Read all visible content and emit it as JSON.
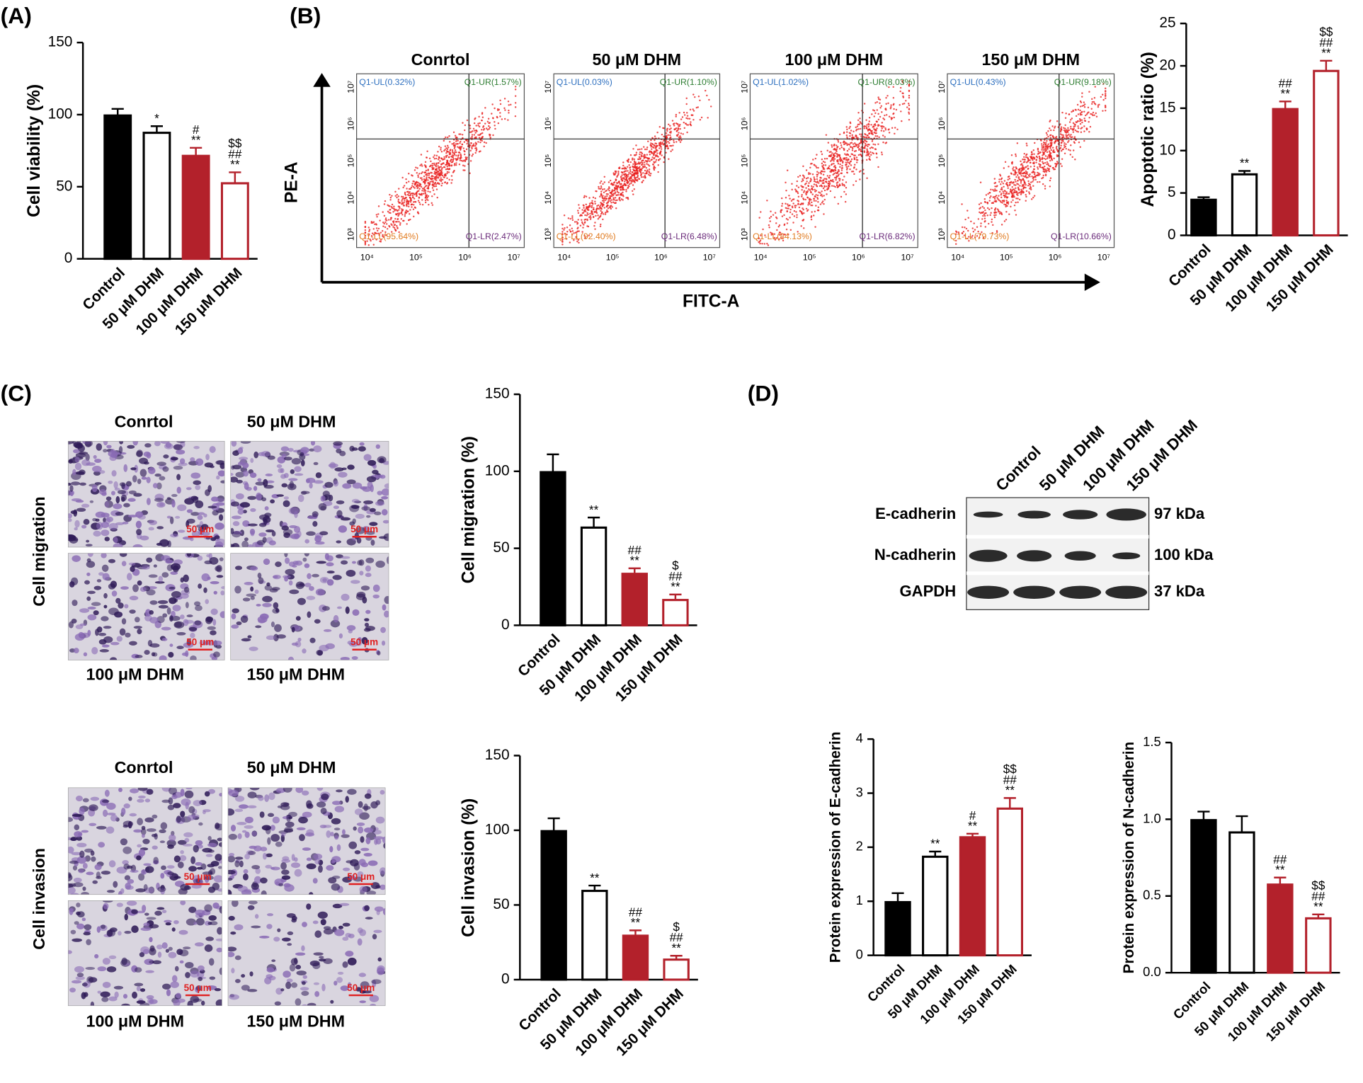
{
  "panel_labels": [
    "(A)",
    "(B)",
    "(C)",
    "(D)"
  ],
  "chart_data": [
    {
      "type": "bar",
      "ylabel": "Cell viability (%)",
      "categories": [
        "Control",
        "50 μM DHM",
        "100 μM DHM",
        "150 μM DHM"
      ],
      "values": [
        100,
        88,
        72,
        53
      ],
      "errors": [
        4,
        4,
        5,
        7
      ],
      "annotations": [
        [],
        [
          "*"
        ],
        [
          "#",
          "**"
        ],
        [
          "$$",
          "##",
          "**"
        ]
      ],
      "colors": [
        "#000000",
        "#ffffff",
        "#b3212b",
        "#ffffff"
      ],
      "edgecolors": [
        "#000000",
        "#000000",
        "#b3212b",
        "#b3212b"
      ],
      "ylim": [
        0,
        150
      ],
      "yticks": [
        0,
        50,
        100,
        150
      ]
    },
    {
      "type": "bar",
      "ylabel": "Apoptotic ratio (%)",
      "categories": [
        "Control",
        "50 μM DHM",
        "100 μM DHM",
        "150 μM DHM"
      ],
      "values": [
        4.3,
        7.3,
        15.0,
        19.5
      ],
      "errors": [
        0.2,
        0.3,
        0.8,
        1.1
      ],
      "annotations": [
        [],
        [
          "**"
        ],
        [
          "##",
          "**"
        ],
        [
          "$$",
          "##",
          "**"
        ]
      ],
      "colors": [
        "#000000",
        "#ffffff",
        "#b3212b",
        "#ffffff"
      ],
      "edgecolors": [
        "#000000",
        "#000000",
        "#b3212b",
        "#b3212b"
      ],
      "ylim": [
        0,
        25
      ],
      "yticks": [
        0,
        5,
        10,
        15,
        20,
        25
      ]
    },
    {
      "type": "bar",
      "ylabel": "Cell migration (%)",
      "categories": [
        "Control",
        "50 μM DHM",
        "100 μM DHM",
        "150 μM DHM"
      ],
      "values": [
        100,
        64,
        34,
        17
      ],
      "errors": [
        11,
        6,
        3,
        3
      ],
      "annotations": [
        [],
        [
          "**"
        ],
        [
          "##",
          "**"
        ],
        [
          "$",
          "##",
          "**"
        ]
      ],
      "colors": [
        "#000000",
        "#ffffff",
        "#b3212b",
        "#ffffff"
      ],
      "edgecolors": [
        "#000000",
        "#000000",
        "#b3212b",
        "#b3212b"
      ],
      "ylim": [
        0,
        150
      ],
      "yticks": [
        0,
        50,
        100,
        150
      ]
    },
    {
      "type": "bar",
      "ylabel": "Cell invasion (%)",
      "categories": [
        "Control",
        "50 μM DHM",
        "100 μM DHM",
        "150 μM DHM"
      ],
      "values": [
        100,
        60,
        30,
        14
      ],
      "errors": [
        8,
        3,
        3,
        2
      ],
      "annotations": [
        [],
        [
          "**"
        ],
        [
          "##",
          "**"
        ],
        [
          "$",
          "##",
          "**"
        ]
      ],
      "colors": [
        "#000000",
        "#ffffff",
        "#b3212b",
        "#ffffff"
      ],
      "edgecolors": [
        "#000000",
        "#000000",
        "#b3212b",
        "#b3212b"
      ],
      "ylim": [
        0,
        150
      ],
      "yticks": [
        0,
        50,
        100,
        150
      ]
    },
    {
      "type": "bar",
      "ylabel": "Protein expression of E-cadherin",
      "categories": [
        "Control",
        "50 μM DHM",
        "100 μM DHM",
        "150 μM DHM"
      ],
      "values": [
        1.0,
        1.84,
        2.2,
        2.73
      ],
      "errors": [
        0.15,
        0.08,
        0.05,
        0.18
      ],
      "annotations": [
        [],
        [
          "**"
        ],
        [
          "#",
          "**"
        ],
        [
          "$$",
          "##",
          "**"
        ]
      ],
      "colors": [
        "#000000",
        "#ffffff",
        "#b3212b",
        "#ffffff"
      ],
      "edgecolors": [
        "#000000",
        "#000000",
        "#b3212b",
        "#b3212b"
      ],
      "ylim": [
        0,
        4
      ],
      "yticks": [
        0,
        1,
        2,
        3,
        4
      ]
    },
    {
      "type": "bar",
      "ylabel": "Protein expression of N-cadherin",
      "categories": [
        "Control",
        "50 μM DHM",
        "100 μM DHM",
        "150 μM DHM"
      ],
      "values": [
        1.0,
        0.92,
        0.58,
        0.36
      ],
      "errors": [
        0.05,
        0.1,
        0.04,
        0.02
      ],
      "annotations": [
        [],
        [],
        [
          "##",
          "**"
        ],
        [
          "$$",
          "##",
          "**"
        ]
      ],
      "colors": [
        "#000000",
        "#ffffff",
        "#b3212b",
        "#ffffff"
      ],
      "edgecolors": [
        "#000000",
        "#000000",
        "#b3212b",
        "#b3212b"
      ],
      "ylim": [
        0,
        1.5
      ],
      "yticks": [
        {
          "value": 0,
          "label": "0.0"
        },
        0.5,
        {
          "value": 1,
          "label": "1.0"
        },
        1.5
      ]
    }
  ],
  "flow": {
    "xlabel": "FITC-A",
    "ylabel": "PE-A",
    "yticks": [
      "10³",
      "10⁴",
      "10⁵",
      "10⁶",
      "10⁷"
    ],
    "xticks": [
      "10⁴",
      "10⁵",
      "10⁶",
      "10⁷"
    ],
    "quadrant_colors": [
      "#2d6fbf",
      "#2e7d32",
      "#e07b20",
      "#6a2a7a"
    ],
    "panels": [
      {
        "title": "Conrtol",
        "quadrants": [
          "Q1-UL(0.32%)",
          "Q1-UR(1.57%)",
          "Q1-LL(95.64%)",
          "Q1-LR(2.47%)"
        ]
      },
      {
        "title": "50 μM DHM",
        "quadrants": [
          "Q1-UL(0.03%)",
          "Q1-UR(1.10%)",
          "Q1-LL(92.40%)",
          "Q1-LR(6.48%)"
        ]
      },
      {
        "title": "100 μM DHM",
        "quadrants": [
          "Q1-UL(1.02%)",
          "Q1-UR(8.03%)",
          "Q1-LL(84.13%)",
          "Q1-LR(6.82%)"
        ]
      },
      {
        "title": "150 μM DHM",
        "quadrants": [
          "Q1-UL(0.43%)",
          "Q1-UR(9.18%)",
          "Q1-LL(79.73%)",
          "Q1-LR(10.66%)"
        ]
      }
    ]
  },
  "microscopy": [
    {
      "row_label": "Cell migration",
      "labels": [
        "Conrtol",
        "50 μM DHM",
        "100 μM DHM",
        "150 μM DHM"
      ],
      "scale_bar": "50 μm"
    },
    {
      "row_label": "Cell invasion",
      "labels": [
        "Conrtol",
        "50 μM DHM",
        "100 μM DHM",
        "150 μM DHM"
      ],
      "scale_bar": "50 μm"
    }
  ],
  "blot": {
    "lanes": [
      "Control",
      "50 μM DHM",
      "100 μM DHM",
      "150 μM DHM"
    ],
    "rows": [
      {
        "name": "E-cadherin",
        "size": "97 kDa"
      },
      {
        "name": "N-cadherin",
        "size": "100 kDa"
      },
      {
        "name": "GAPDH",
        "size": "37 kDa"
      }
    ]
  }
}
